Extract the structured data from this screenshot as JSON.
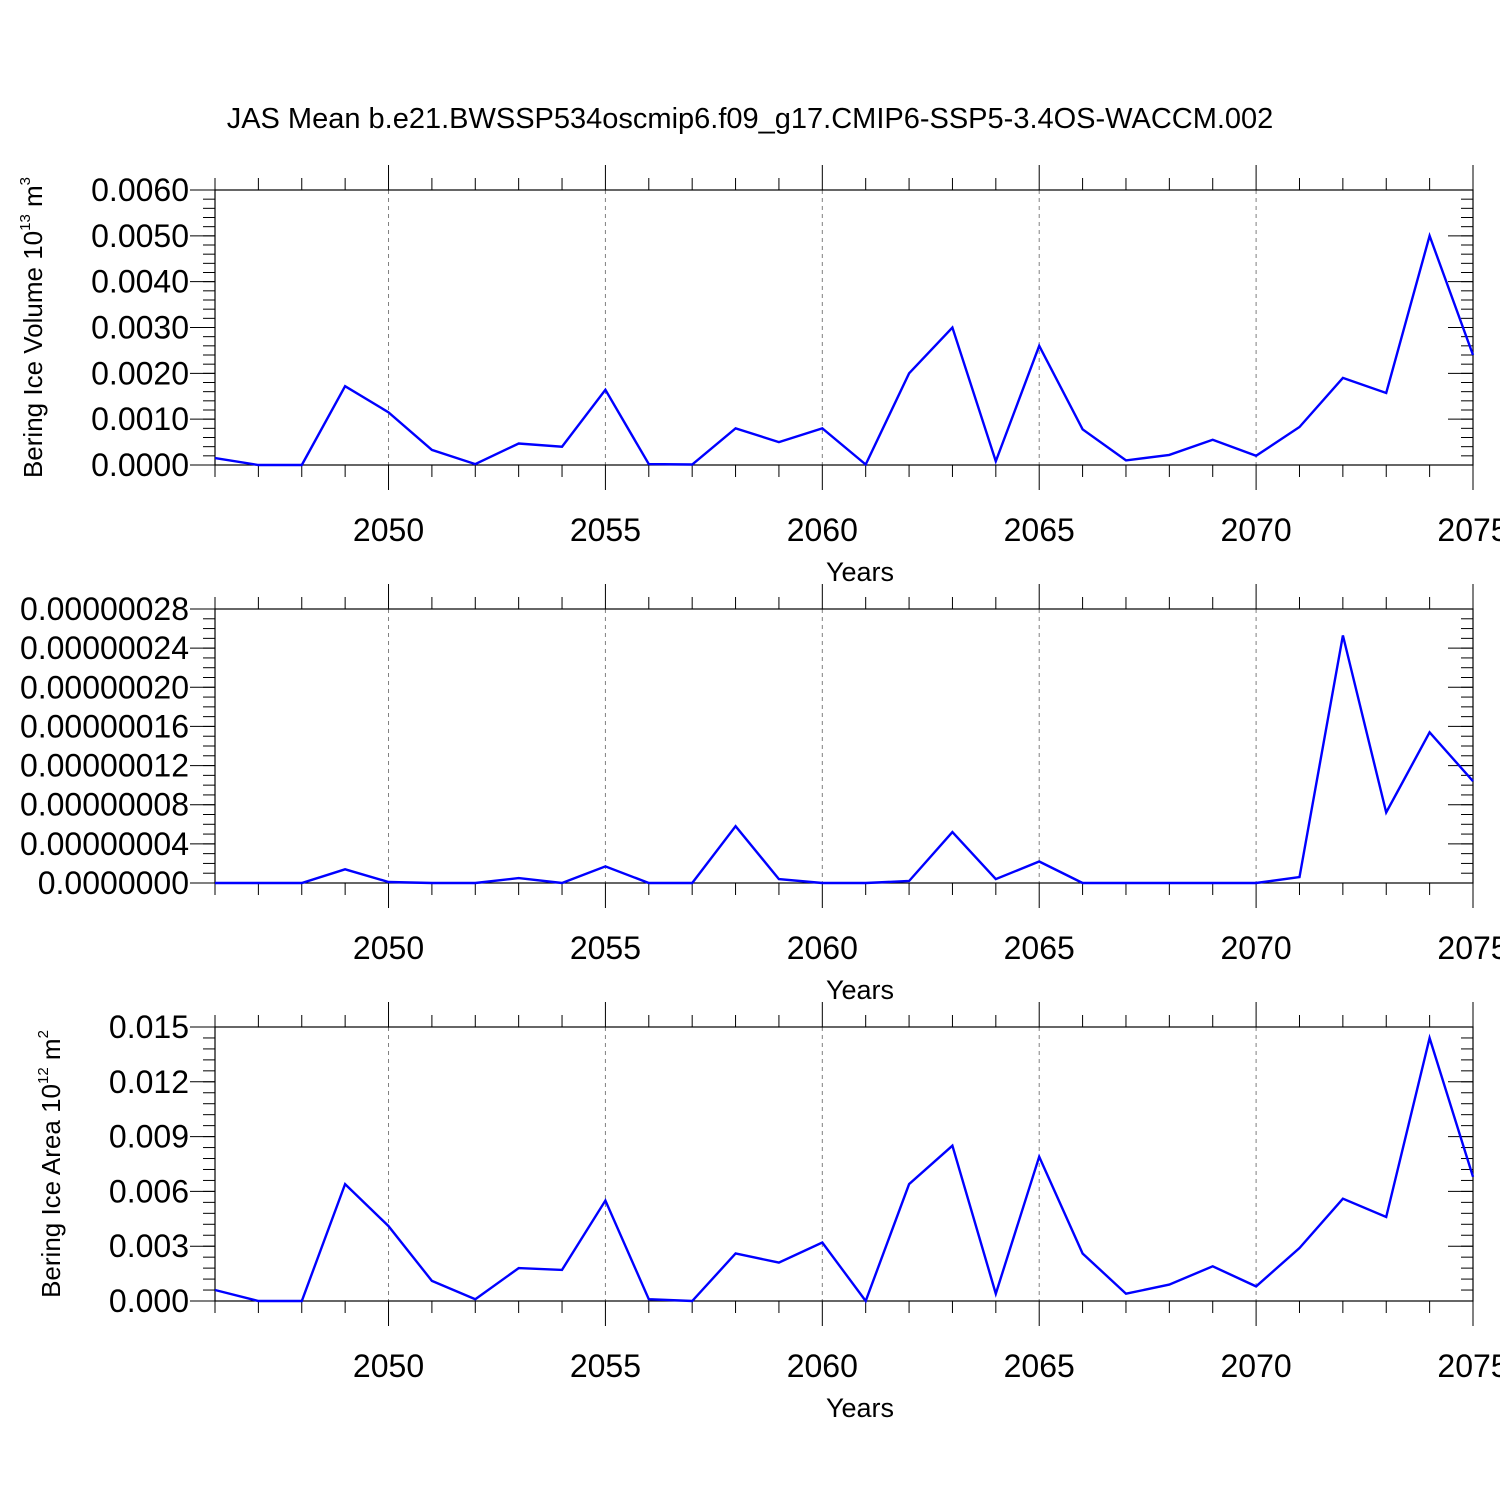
{
  "figure_title": "JAS Mean b.e21.BWSSP534oscmip6.f09_g17.CMIP6-SSP5-3.4OS-WACCM.002",
  "colors": {
    "line": "#0000ff",
    "axis": "#000000",
    "grid": "#808080"
  },
  "chart_data": [
    {
      "type": "line",
      "name": "volume",
      "title": "JAS Mean b.e21.BWSSP534oscmip6.f09_g17.CMIP6-SSP5-3.4OS-WACCM.002",
      "xlabel": "Years",
      "ylabel": {
        "text": "Bering Ice Volume 10",
        "sup": "13",
        "unit": " m",
        "unit_sup": "3"
      },
      "xlim": [
        2046,
        2075
      ],
      "ylim": [
        0,
        0.006
      ],
      "xticks": [
        2050,
        2055,
        2060,
        2065,
        2070,
        2075
      ],
      "yticks": [
        0,
        0.001,
        0.002,
        0.003,
        0.004,
        0.005,
        0.006
      ],
      "ytick_labels": [
        "0.0000",
        "0.0010",
        "0.0020",
        "0.0030",
        "0.0040",
        "0.0050",
        "0.0060"
      ],
      "yminor_step": 0.0002,
      "x": [
        2046,
        2047,
        2048,
        2049,
        2050,
        2051,
        2052,
        2053,
        2054,
        2055,
        2056,
        2057,
        2058,
        2059,
        2060,
        2061,
        2062,
        2063,
        2064,
        2065,
        2066,
        2067,
        2068,
        2069,
        2070,
        2071,
        2072,
        2073,
        2074,
        2075
      ],
      "values": [
        0.00015,
        0.0,
        0.0,
        0.00172,
        0.00115,
        0.00033,
        2e-05,
        0.00047,
        0.0004,
        0.00164,
        2e-05,
        1e-05,
        0.0008,
        0.0005,
        0.0008,
        1e-05,
        0.002,
        0.003,
        8e-05,
        0.0026,
        0.00078,
        0.0001,
        0.00022,
        0.00055,
        0.0002,
        0.00083,
        0.0019,
        0.00157,
        0.005,
        0.0024
      ]
    },
    {
      "type": "line",
      "name": "thin-ice",
      "xlabel": "Years",
      "ylabel": null,
      "xlim": [
        2046,
        2075
      ],
      "ylim": [
        0,
        2.8e-07
      ],
      "xticks": [
        2050,
        2055,
        2060,
        2065,
        2070,
        2075
      ],
      "yticks": [
        0,
        4e-08,
        8e-08,
        1.2e-07,
        1.6e-07,
        2e-07,
        2.4e-07,
        2.8e-07
      ],
      "ytick_labels": [
        "0.0000000",
        "0.00000004",
        "0.00000008",
        "0.00000012",
        "0.00000016",
        "0.00000020",
        "0.00000024",
        "0.00000028"
      ],
      "yminor_step": 1e-08,
      "x": [
        2046,
        2047,
        2048,
        2049,
        2050,
        2051,
        2052,
        2053,
        2054,
        2055,
        2056,
        2057,
        2058,
        2059,
        2060,
        2061,
        2062,
        2063,
        2064,
        2065,
        2066,
        2067,
        2068,
        2069,
        2070,
        2071,
        2072,
        2073,
        2074,
        2075
      ],
      "values": [
        0,
        0,
        0,
        1.4e-08,
        1e-09,
        0,
        0,
        5e-09,
        0,
        1.7e-08,
        0,
        0,
        5.8e-08,
        4e-09,
        0,
        0,
        2e-09,
        5.2e-08,
        4e-09,
        2.2e-08,
        0,
        0,
        0,
        0,
        0,
        6e-09,
        2.53e-07,
        7.2e-08,
        1.54e-07,
        1.04e-07
      ]
    },
    {
      "type": "line",
      "name": "area",
      "xlabel": "Years",
      "ylabel": {
        "text": "Bering Ice Area 10",
        "sup": "12",
        "unit": " m",
        "unit_sup": "2"
      },
      "xlim": [
        2046,
        2075
      ],
      "ylim": [
        0,
        0.015
      ],
      "xticks": [
        2050,
        2055,
        2060,
        2065,
        2070,
        2075
      ],
      "yticks": [
        0,
        0.003,
        0.006,
        0.009,
        0.012,
        0.015
      ],
      "ytick_labels": [
        "0.000",
        "0.003",
        "0.006",
        "0.009",
        "0.012",
        "0.015"
      ],
      "yminor_step": 0.0006,
      "x": [
        2046,
        2047,
        2048,
        2049,
        2050,
        2051,
        2052,
        2053,
        2054,
        2055,
        2056,
        2057,
        2058,
        2059,
        2060,
        2061,
        2062,
        2063,
        2064,
        2065,
        2066,
        2067,
        2068,
        2069,
        2070,
        2071,
        2072,
        2073,
        2074,
        2075
      ],
      "values": [
        0.0006,
        0.0,
        0.0,
        0.0064,
        0.0041,
        0.0011,
        0.0001,
        0.0018,
        0.0017,
        0.0055,
        0.0001,
        0.0,
        0.0026,
        0.0021,
        0.0032,
        0.0,
        0.0064,
        0.0085,
        0.0004,
        0.0079,
        0.0026,
        0.0004,
        0.0009,
        0.0019,
        0.0008,
        0.0029,
        0.0056,
        0.0046,
        0.0144,
        0.0068
      ]
    }
  ]
}
